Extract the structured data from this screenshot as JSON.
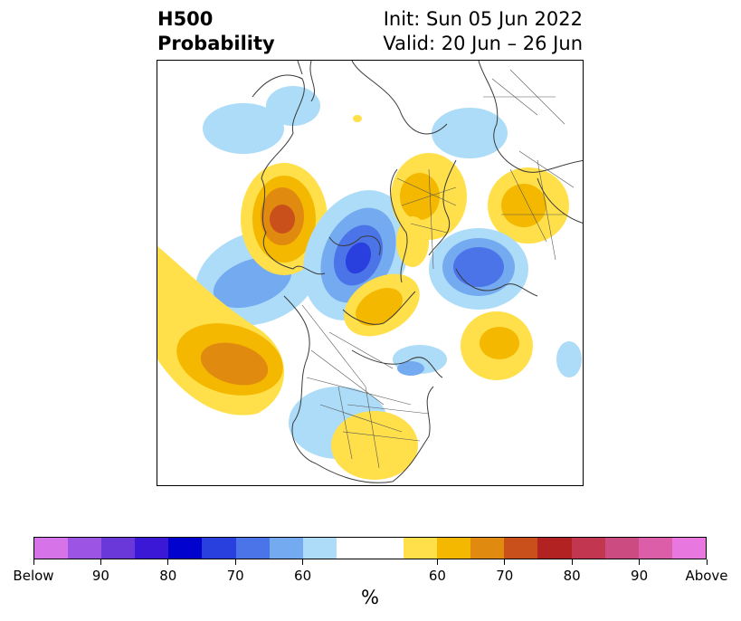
{
  "title": {
    "line1": "H500",
    "line2": "Probability",
    "init": "Init: Sun 05 Jun 2022",
    "valid": "Valid: 20 Jun – 26 Jun"
  },
  "colorbar": {
    "label": "%",
    "ticks": [
      "Below",
      "90",
      "80",
      "70",
      "60",
      "60",
      "70",
      "80",
      "90",
      "Above"
    ],
    "below_colors": [
      "#d673e9",
      "#9b54e3",
      "#6a37d9",
      "#3b18d6",
      "#0202ce",
      "#2a40de",
      "#4b74e8",
      "#74aaf0",
      "#acdcf8"
    ],
    "neutral_color": "#ffffff",
    "above_colors": [
      "#ffe04a",
      "#f5b800",
      "#e08a10",
      "#c9501a",
      "#b22222",
      "#c23650",
      "#cc4b80",
      "#dc5ea8",
      "#e878e0"
    ]
  },
  "map": {
    "projection": "polar-stereographic",
    "region": "North America and Arctic"
  }
}
